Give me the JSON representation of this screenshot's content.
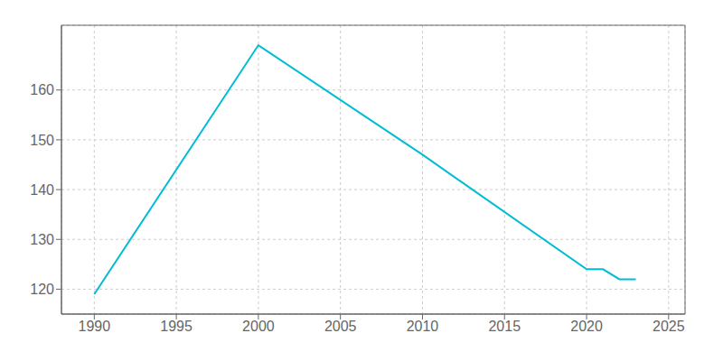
{
  "chart_data": {
    "type": "line",
    "x": [
      1990,
      2000,
      2010,
      2020,
      2021,
      2022,
      2023
    ],
    "values": [
      119,
      169,
      147,
      124,
      124,
      122,
      122
    ],
    "color": "#00bcd4",
    "xlim": [
      1988,
      2026
    ],
    "ylim": [
      115,
      173
    ],
    "xticks": [
      1990,
      1995,
      2000,
      2005,
      2010,
      2015,
      2020,
      2025
    ],
    "yticks": [
      120,
      130,
      140,
      150,
      160
    ],
    "grid": true
  }
}
